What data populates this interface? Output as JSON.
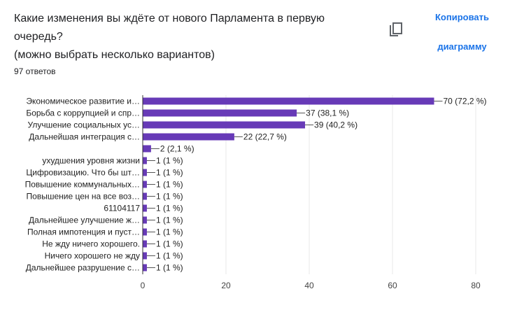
{
  "question": {
    "title_line1": "Какие изменения вы ждёте от нового Парламента в первую",
    "title_line2": "очередь?",
    "title_line3": "(можно выбрать несколько вариантов)",
    "responses": "97 ответов"
  },
  "copy_button": {
    "label_line1": "Копировать",
    "label_line2": "диаграмму",
    "icon": "copy-icon"
  },
  "colors": {
    "bar": "#673ab7",
    "accent": "#1a73e8"
  },
  "chart_data": {
    "type": "bar",
    "orientation": "horizontal",
    "xlim": [
      0,
      80
    ],
    "xticks": [
      0,
      20,
      40,
      60,
      80
    ],
    "grid": true,
    "categories": [
      "Экономическое развитие и…",
      "Борьба с коррупцией и спр…",
      "Улучшение социальных ус…",
      "Дальнейшая интеграция с…",
      "",
      "ухудшения уровня жизни",
      "Цифровизацию. Что бы шт…",
      "Повышение коммунальных…",
      "Повышение цен на все воз…",
      "61104117",
      "Дальнейшее улучшение ж…",
      "Полная импотенция и пуст…",
      "Не жду ничего хорошего.",
      "Ничего хорошего не жду",
      "Дальнейшее разрушение с…"
    ],
    "values": [
      70,
      37,
      39,
      22,
      2,
      1,
      1,
      1,
      1,
      1,
      1,
      1,
      1,
      1,
      1
    ],
    "labels": [
      "70 (72,2 %)",
      "37 (38,1 %)",
      "39 (40,2 %)",
      "22 (22,7 %)",
      "2 (2,1 %)",
      "1 (1 %)",
      "1 (1 %)",
      "1 (1 %)",
      "1 (1 %)",
      "1 (1 %)",
      "1 (1 %)",
      "1 (1 %)",
      "1 (1 %)",
      "1 (1 %)",
      "1 (1 %)"
    ]
  }
}
